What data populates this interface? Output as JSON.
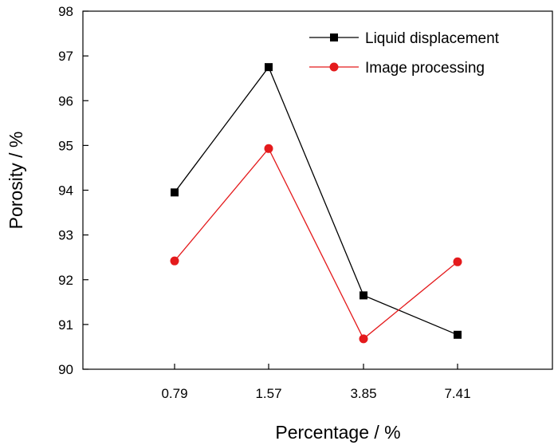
{
  "chart_data": {
    "type": "line",
    "categories": [
      "0.79",
      "1.57",
      "3.85",
      "7.41"
    ],
    "series": [
      {
        "name": "Liquid displacement",
        "values": [
          93.95,
          96.75,
          91.65,
          90.77
        ],
        "color": "#000000",
        "marker": "square"
      },
      {
        "name": "Image processing",
        "values": [
          92.42,
          94.93,
          90.68,
          92.4
        ],
        "color": "#e41a1c",
        "marker": "circle"
      }
    ],
    "xlabel": "Percentage / %",
    "ylabel": "Porosity / %",
    "ylim": [
      90,
      98
    ],
    "yticks": [
      "90",
      "91",
      "92",
      "93",
      "94",
      "95",
      "96",
      "97",
      "98"
    ],
    "legend": "top-right",
    "grid": false
  }
}
